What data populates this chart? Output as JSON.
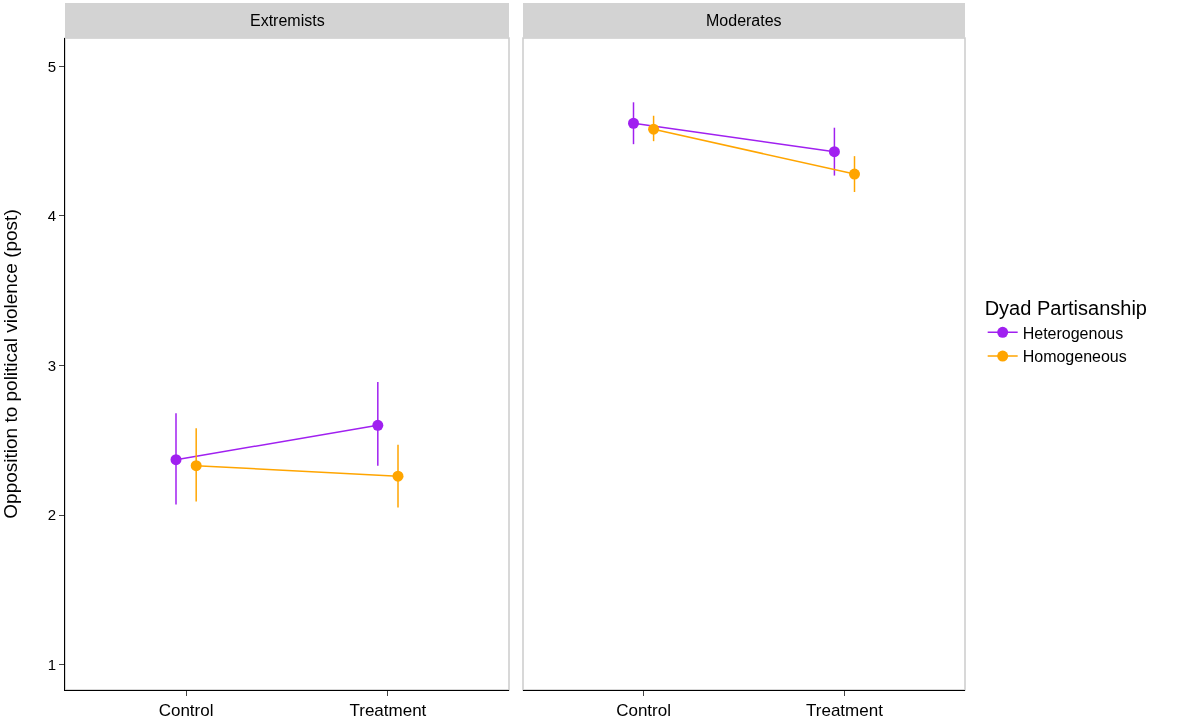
{
  "chart_data": [
    {
      "type": "line",
      "title": "Extremists",
      "ylabel": "Opposition to political violence (post)",
      "categories": [
        "Control",
        "Treatment"
      ],
      "ylim": [
        0.83,
        5.19
      ],
      "yticks": [
        1,
        2,
        3,
        4,
        5
      ],
      "grid": false,
      "legend": false,
      "marker": "circle",
      "line_style": "solid",
      "series": [
        {
          "color": "#a020f0",
          "values": [
            2.37,
            2.6
          ],
          "errors": [
            [
              2.07,
              2.68
            ],
            [
              2.33,
              2.89
            ]
          ]
        },
        {
          "color": "#ffa500",
          "values": [
            2.33,
            2.26
          ],
          "errors": [
            [
              2.09,
              2.58
            ],
            [
              2.05,
              2.47
            ]
          ]
        }
      ]
    },
    {
      "type": "line",
      "title": "Moderates",
      "legend_title": "Dyad Partisanship",
      "categories": [
        "Control",
        "Treatment"
      ],
      "ylim": [
        0.83,
        5.19
      ],
      "yticks": [
        1,
        2,
        3,
        4,
        5
      ],
      "grid": false,
      "legend": "right",
      "tick_labels": "x",
      "marker": "circle",
      "line_style": "solid",
      "series": [
        {
          "name": "Heterogenous",
          "color": "#a020f0",
          "values": [
            4.62,
            4.43
          ],
          "errors": [
            [
              4.48,
              4.76
            ],
            [
              4.27,
              4.59
            ]
          ]
        },
        {
          "name": "Homogeneous",
          "color": "#ffa500",
          "values": [
            4.58,
            4.28
          ],
          "errors": [
            [
              4.5,
              4.67
            ],
            [
              4.16,
              4.4
            ]
          ]
        }
      ]
    }
  ]
}
